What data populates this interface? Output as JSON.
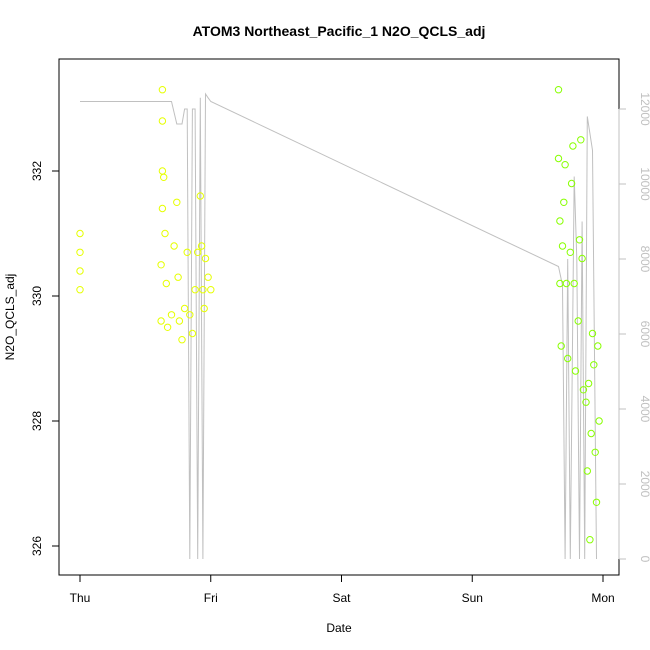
{
  "chart_data": {
    "type": "scatter",
    "title": "ATOM3 Northeast_Pacific_1 N2O_QCLS_adj",
    "xlabel": "Date",
    "ylabel": "N2O_QCLS_adj",
    "x_ticks": [
      "Thu",
      "Fri",
      "Sat",
      "Sun",
      "Mon"
    ],
    "y_ticks": [
      "326",
      "328",
      "330",
      "332"
    ],
    "y2_ticks": [
      "0",
      "2000",
      "4000",
      "6000",
      "8000",
      "10000",
      "12000"
    ],
    "xlim": [
      0,
      4.0
    ],
    "ylim": [
      325.8,
      333.7
    ],
    "y2lim": [
      0,
      12400
    ],
    "grid": false,
    "colors": {
      "altitude_line": "#c0c0c0",
      "series_early": "#e6ff00",
      "series_late": "#88ff00",
      "axis": "#000000",
      "right_axis": "#c0c0c0"
    },
    "series": [
      {
        "kind": "points",
        "points": [
          [
            0.0,
            330.1
          ],
          [
            0.0,
            330.4
          ],
          [
            0.0,
            330.7
          ],
          [
            0.0,
            331.0
          ],
          [
            0.62,
            329.6
          ],
          [
            0.62,
            330.5
          ],
          [
            0.63,
            331.4
          ],
          [
            0.63,
            332.0
          ],
          [
            0.63,
            332.8
          ],
          [
            0.63,
            333.3
          ],
          [
            0.64,
            331.9
          ],
          [
            0.65,
            331.0
          ],
          [
            0.66,
            330.2
          ],
          [
            0.67,
            329.5
          ],
          [
            0.7,
            329.7
          ],
          [
            0.72,
            330.8
          ],
          [
            0.74,
            331.5
          ],
          [
            0.75,
            330.3
          ],
          [
            0.76,
            329.6
          ],
          [
            0.78,
            329.3
          ],
          [
            0.8,
            329.8
          ],
          [
            0.82,
            330.7
          ],
          [
            0.84,
            329.7
          ],
          [
            0.86,
            329.4
          ],
          [
            0.88,
            330.1
          ],
          [
            0.9,
            330.7
          ],
          [
            0.92,
            331.6
          ],
          [
            0.93,
            330.8
          ],
          [
            0.94,
            330.1
          ],
          [
            0.95,
            329.8
          ],
          [
            0.96,
            330.6
          ],
          [
            0.98,
            330.3
          ],
          [
            1.0,
            330.1
          ]
        ],
        "color": "#e6ff00"
      },
      {
        "kind": "points",
        "points": [
          [
            3.66,
            333.3
          ],
          [
            3.66,
            332.2
          ],
          [
            3.67,
            331.2
          ],
          [
            3.67,
            330.2
          ],
          [
            3.68,
            329.2
          ],
          [
            3.69,
            330.8
          ],
          [
            3.7,
            331.5
          ],
          [
            3.71,
            332.1
          ],
          [
            3.72,
            330.2
          ],
          [
            3.73,
            329.0
          ],
          [
            3.75,
            330.7
          ],
          [
            3.76,
            331.8
          ],
          [
            3.77,
            332.4
          ],
          [
            3.78,
            330.2
          ],
          [
            3.79,
            328.8
          ],
          [
            3.81,
            329.6
          ],
          [
            3.82,
            330.9
          ],
          [
            3.83,
            332.5
          ],
          [
            3.84,
            330.6
          ],
          [
            3.85,
            328.5
          ],
          [
            3.87,
            328.3
          ],
          [
            3.88,
            327.2
          ],
          [
            3.89,
            328.6
          ],
          [
            3.9,
            326.1
          ],
          [
            3.91,
            327.8
          ],
          [
            3.92,
            329.4
          ],
          [
            3.93,
            328.9
          ],
          [
            3.94,
            327.5
          ],
          [
            3.95,
            326.7
          ],
          [
            3.96,
            329.2
          ],
          [
            3.97,
            328.0
          ]
        ],
        "color": "#88ff00"
      },
      {
        "kind": "line",
        "axis": "right",
        "points": [
          [
            0.0,
            12200
          ],
          [
            0.62,
            12200
          ],
          [
            0.7,
            12200
          ],
          [
            0.74,
            11600
          ],
          [
            0.78,
            11600
          ],
          [
            0.8,
            12000
          ],
          [
            0.82,
            12000
          ],
          [
            0.84,
            0
          ],
          [
            0.86,
            12000
          ],
          [
            0.88,
            12000
          ],
          [
            0.9,
            0
          ],
          [
            0.92,
            12300
          ],
          [
            0.94,
            0
          ],
          [
            0.96,
            12400
          ],
          [
            0.98,
            12300
          ],
          [
            1.0,
            12200
          ],
          [
            3.66,
            7800
          ],
          [
            3.69,
            7300
          ],
          [
            3.71,
            0
          ],
          [
            3.73,
            8000
          ],
          [
            3.75,
            0
          ],
          [
            3.78,
            10200
          ],
          [
            3.8,
            8000
          ],
          [
            3.82,
            0
          ],
          [
            3.84,
            9000
          ],
          [
            3.86,
            0
          ],
          [
            3.88,
            11800
          ],
          [
            3.92,
            10900
          ],
          [
            3.95,
            0
          ]
        ],
        "color": "#c0c0c0"
      }
    ]
  }
}
